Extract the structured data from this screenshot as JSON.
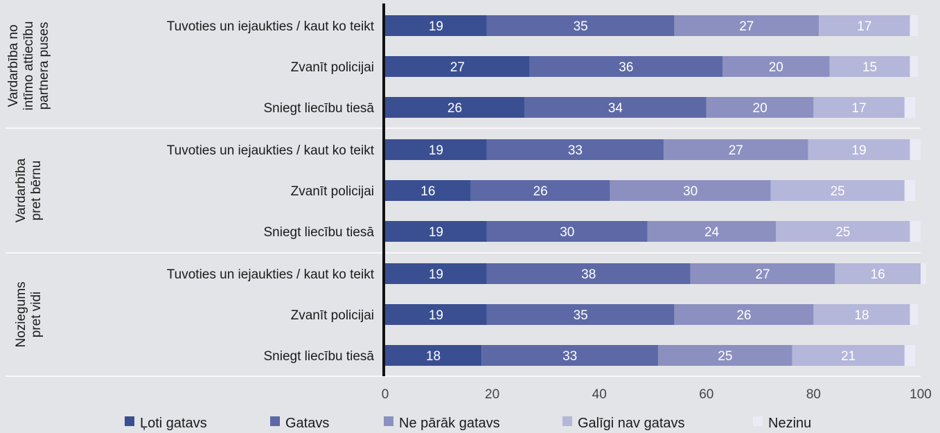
{
  "chart_data": {
    "type": "bar",
    "orientation": "horizontal",
    "stacked": true,
    "xlim": [
      0,
      100
    ],
    "xticks": [
      "0",
      "20",
      "40",
      "60",
      "80",
      "100"
    ],
    "groups": [
      {
        "label": "Vardarbība no intīmo attiecību partnera puses",
        "label_lines": [
          "Vardarbība no",
          "intīmo attiecību",
          "partnera puses"
        ],
        "rows": [
          {
            "label": "Tuvoties un iejaukties / kaut ko teikt",
            "values": [
              19,
              35,
              27,
              17,
              1.5
            ]
          },
          {
            "label": "Zvanīt policijai",
            "values": [
              27,
              36,
              20,
              15,
              1.5
            ]
          },
          {
            "label": "Sniegt liecību tiesā",
            "values": [
              26,
              34,
              20,
              17,
              2
            ]
          }
        ]
      },
      {
        "label": "Vardarbība pret bērnu",
        "label_lines": [
          "Vardarbība",
          "pret bērnu"
        ],
        "rows": [
          {
            "label": "Tuvoties un iejaukties / kaut ko teikt",
            "values": [
              19,
              33,
              27,
              19,
              2
            ]
          },
          {
            "label": "Zvanīt policijai",
            "values": [
              16,
              26,
              30,
              25,
              2
            ]
          },
          {
            "label": "Sniegt liecību tiesā",
            "values": [
              19,
              30,
              24,
              25,
              2
            ]
          }
        ]
      },
      {
        "label": "Noziegums pret vidi",
        "label_lines": [
          "Noziegums",
          "pret vidi"
        ],
        "rows": [
          {
            "label": "Tuvoties un iejaukties / kaut ko teikt",
            "values": [
              19,
              38,
              27,
              16,
              1
            ]
          },
          {
            "label": "Zvanīt policijai",
            "values": [
              19,
              35,
              26,
              18,
              1.5
            ]
          },
          {
            "label": "Sniegt liecību tiesā",
            "values": [
              18,
              33,
              25,
              21,
              2
            ]
          }
        ]
      }
    ],
    "series": [
      {
        "name": "Ļoti gatavs",
        "color": "#3a4f92"
      },
      {
        "name": "Gatavs",
        "color": "#5d69a6"
      },
      {
        "name": "Ne pārāk gatavs",
        "color": "#8b90c0"
      },
      {
        "name": "Galīgi nav gatavs",
        "color": "#b4b6da"
      },
      {
        "name": "Nezinu",
        "color": "#ebebf6"
      }
    ],
    "legend_position": "bottom",
    "grid": false
  }
}
